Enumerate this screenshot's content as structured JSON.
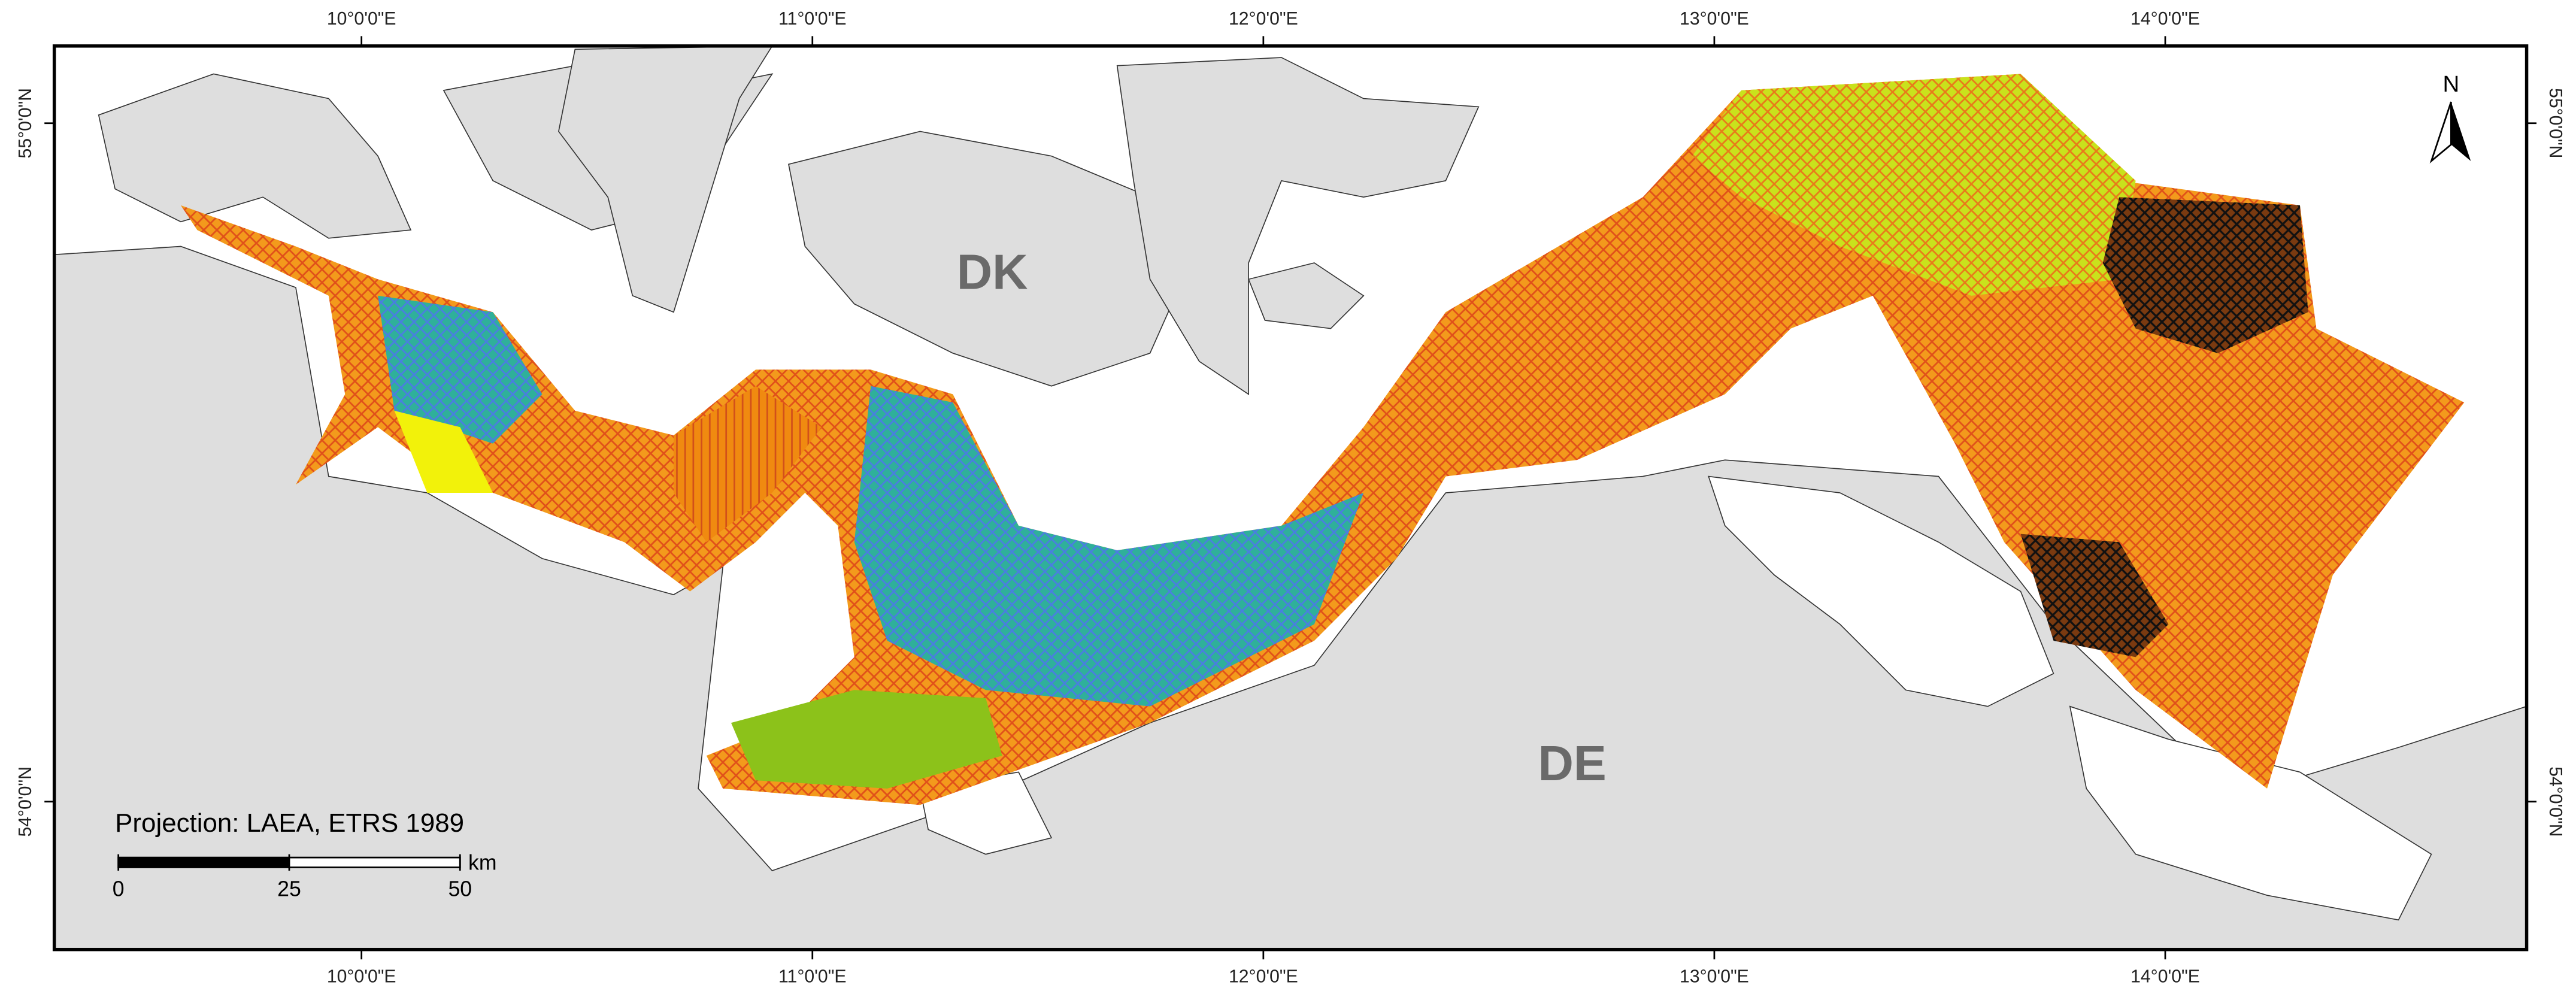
{
  "map": {
    "longitudes": [
      {
        "value": 10,
        "label": "10°0'0\"E"
      },
      {
        "value": 11,
        "label": "11°0'0\"E"
      },
      {
        "value": 12,
        "label": "12°0'0\"E"
      },
      {
        "value": 13,
        "label": "13°0'0\"E"
      },
      {
        "value": 14,
        "label": "14°0'0\"E"
      }
    ],
    "latitudes": [
      {
        "value": 55,
        "label": "55°0'0\"N"
      },
      {
        "value": 54,
        "label": "54°0'0\"N"
      }
    ],
    "countries": [
      "DK",
      "DE"
    ],
    "north_arrow": "N",
    "projection": "Projection: LAEA, ETRS 1989",
    "scale_bar": {
      "ticks": [
        0,
        25,
        50
      ],
      "unit": "km"
    }
  }
}
